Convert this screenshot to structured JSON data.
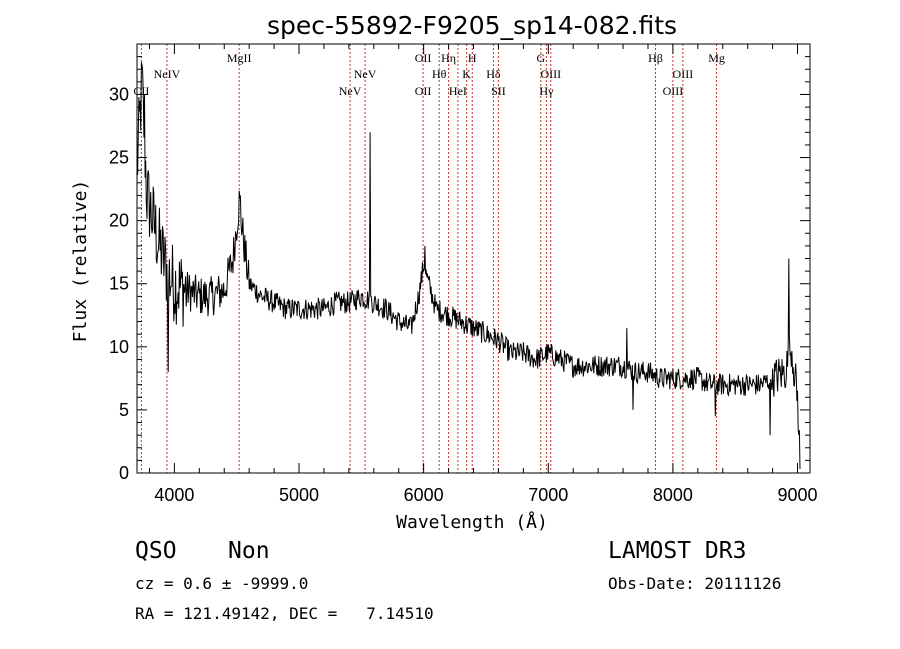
{
  "chart_data": {
    "type": "line",
    "title": "spec-55892-F9205_sp14-082.fits",
    "xlabel": "Wavelength (Å)",
    "ylabel": "Flux (relative)",
    "xlim": [
      3700,
      9100
    ],
    "ylim": [
      0,
      34
    ],
    "xticks": [
      4000,
      5000,
      6000,
      7000,
      8000,
      9000
    ],
    "yticks": [
      0,
      5,
      10,
      15,
      20,
      25,
      30
    ],
    "emission_lines": [
      {
        "label": "CII",
        "x": 3735,
        "row": 3
      },
      {
        "label": "NeIV",
        "x": 3940,
        "row": 2
      },
      {
        "label": "MgII",
        "x": 4520,
        "row": 1
      },
      {
        "label": "NeV",
        "x": 5410,
        "row": 3
      },
      {
        "label": "NeV",
        "x": 5530,
        "row": 2
      },
      {
        "label": "OII",
        "x": 5995,
        "row": 1
      },
      {
        "label": "OII",
        "x": 5995,
        "row": 3
      },
      {
        "label": "Hθ",
        "x": 6125,
        "row": 2
      },
      {
        "label": "Hη",
        "x": 6200,
        "row": 1
      },
      {
        "label": "HeI",
        "x": 6275,
        "row": 3
      },
      {
        "label": "K",
        "x": 6345,
        "row": 2
      },
      {
        "label": "H",
        "x": 6390,
        "row": 1
      },
      {
        "label": "Hδ",
        "x": 6560,
        "row": 2
      },
      {
        "label": "SII",
        "x": 6600,
        "row": 3
      },
      {
        "label": "G",
        "x": 6940,
        "row": 1
      },
      {
        "label": "OIII",
        "x": 7020,
        "row": 2
      },
      {
        "label": "Hγ",
        "x": 6985,
        "row": 3
      },
      {
        "label": "Hβ",
        "x": 7860,
        "row": 1
      },
      {
        "label": "OIII",
        "x": 8080,
        "row": 2
      },
      {
        "label": "OIII",
        "x": 8000,
        "row": 3
      },
      {
        "label": "Mg",
        "x": 8350,
        "row": 1
      }
    ],
    "series": [
      {
        "name": "flux",
        "anchors": [
          [
            3700,
            24
          ],
          [
            3740,
            31
          ],
          [
            3780,
            22
          ],
          [
            3830,
            20
          ],
          [
            3880,
            18
          ],
          [
            3940,
            16
          ],
          [
            4000,
            15
          ],
          [
            4100,
            14.5
          ],
          [
            4200,
            14
          ],
          [
            4300,
            14
          ],
          [
            4400,
            14.5
          ],
          [
            4470,
            17
          ],
          [
            4520,
            21.5
          ],
          [
            4560,
            18
          ],
          [
            4600,
            15
          ],
          [
            4700,
            14
          ],
          [
            4800,
            13.5
          ],
          [
            4900,
            13
          ],
          [
            5000,
            13
          ],
          [
            5100,
            13
          ],
          [
            5200,
            13
          ],
          [
            5300,
            13.5
          ],
          [
            5400,
            13.5
          ],
          [
            5500,
            14
          ],
          [
            5600,
            13.5
          ],
          [
            5700,
            13
          ],
          [
            5800,
            12
          ],
          [
            5900,
            11.5
          ],
          [
            5960,
            14
          ],
          [
            6000,
            16.5
          ],
          [
            6040,
            15
          ],
          [
            6100,
            13
          ],
          [
            6200,
            12.5
          ],
          [
            6300,
            12
          ],
          [
            6400,
            11.5
          ],
          [
            6500,
            11
          ],
          [
            6600,
            10.5
          ],
          [
            6700,
            9.5
          ],
          [
            6800,
            9.5
          ],
          [
            6900,
            9
          ],
          [
            7000,
            9.5
          ],
          [
            7100,
            9
          ],
          [
            7200,
            8.5
          ],
          [
            7300,
            8.5
          ],
          [
            7400,
            8.5
          ],
          [
            7500,
            8.5
          ],
          [
            7600,
            8.5
          ],
          [
            7700,
            8
          ],
          [
            7800,
            8
          ],
          [
            7900,
            7.5
          ],
          [
            8000,
            7.5
          ],
          [
            8100,
            7.5
          ],
          [
            8200,
            7.5
          ],
          [
            8300,
            7
          ],
          [
            8400,
            7
          ],
          [
            8500,
            7
          ],
          [
            8600,
            7
          ],
          [
            8700,
            7
          ],
          [
            8800,
            7.5
          ],
          [
            8900,
            8
          ],
          [
            8950,
            10
          ],
          [
            9000,
            6
          ],
          [
            9020,
            1
          ]
        ],
        "features": [
          {
            "x": 3760,
            "y": 30
          },
          {
            "x": 3950,
            "y": 8
          },
          {
            "x": 4530,
            "y": 22
          },
          {
            "x": 5570,
            "y": 27
          },
          {
            "x": 5580,
            "y": 14
          },
          {
            "x": 6010,
            "y": 18
          },
          {
            "x": 7630,
            "y": 11.5
          },
          {
            "x": 7680,
            "y": 5
          },
          {
            "x": 8340,
            "y": 4.5
          },
          {
            "x": 8780,
            "y": 3
          },
          {
            "x": 8930,
            "y": 17
          },
          {
            "x": 9010,
            "y": 3
          }
        ]
      }
    ]
  },
  "info": {
    "class": "QSO",
    "subclass": "Non",
    "survey": "LAMOST DR3",
    "cz_text": "cz = 0.6 ± -9999.0",
    "obs_date_text": "Obs-Date: 20111126",
    "radec_text": "RA = 121.49142, DEC =   7.14510"
  }
}
